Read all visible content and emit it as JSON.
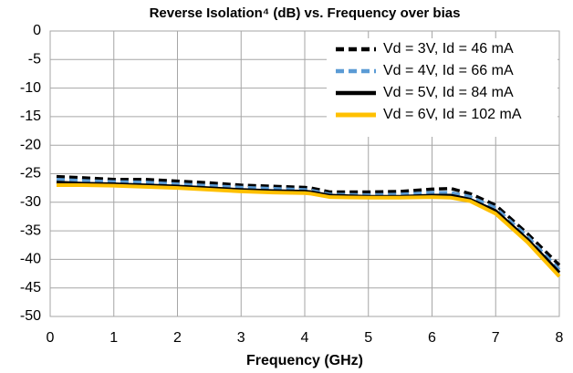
{
  "chart_data": {
    "type": "line",
    "title": "Reverse Isolation⁴ (dB) vs. Frequency over bias",
    "x_label": "Frequency (GHz)",
    "x": [
      0.1,
      0.5,
      1,
      1.5,
      2,
      2.5,
      3,
      3.5,
      4,
      4.1,
      4.4,
      5,
      5.5,
      6,
      6.3,
      6.6,
      7,
      7.5,
      8
    ],
    "series": [
      {
        "name": "Vd = 3V, Id = 46 mA",
        "color": "#000000",
        "dash": true,
        "values": [
          -25.5,
          -25.7,
          -26,
          -26,
          -26.3,
          -26.6,
          -27,
          -27.2,
          -27.4,
          -27.5,
          -28.2,
          -28.2,
          -28.1,
          -27.7,
          -27.6,
          -28.5,
          -30.5,
          -35.5,
          -41
        ]
      },
      {
        "name": "Vd = 4V, Id = 66 mA",
        "color": "#5b9bd5",
        "dash": true,
        "values": [
          -26,
          -26.2,
          -26.4,
          -26.5,
          -26.8,
          -27.1,
          -27.4,
          -27.6,
          -27.8,
          -27.9,
          -28.6,
          -28.7,
          -28.6,
          -28.3,
          -28.3,
          -29,
          -31,
          -36,
          -41.8
        ]
      },
      {
        "name": "Vd = 5V, Id = 84 mA",
        "color": "#000000",
        "dash": false,
        "values": [
          -26.5,
          -26.7,
          -26.8,
          -27,
          -27.2,
          -27.5,
          -27.8,
          -28,
          -28.1,
          -28.2,
          -28.8,
          -29,
          -29,
          -28.8,
          -28.8,
          -29.5,
          -31.5,
          -36.5,
          -42.3
        ]
      },
      {
        "name": "Vd = 6V, Id = 102 mA",
        "color": "#ffc000",
        "dash": false,
        "values": [
          -27,
          -27,
          -27.1,
          -27.3,
          -27.5,
          -27.8,
          -28.1,
          -28.3,
          -28.4,
          -28.5,
          -29.1,
          -29.2,
          -29.2,
          -29.1,
          -29.2,
          -29.8,
          -32,
          -37,
          -43
        ]
      }
    ],
    "xlim": [
      0,
      8
    ],
    "xticks": [
      0,
      1,
      2,
      3,
      4,
      5,
      6,
      7,
      8
    ],
    "ylim": [
      -50,
      0
    ],
    "yticks": [
      0,
      -5,
      -10,
      -15,
      -20,
      -25,
      -30,
      -35,
      -40,
      -45,
      -50
    ],
    "grid": true,
    "legend": "top-right"
  }
}
